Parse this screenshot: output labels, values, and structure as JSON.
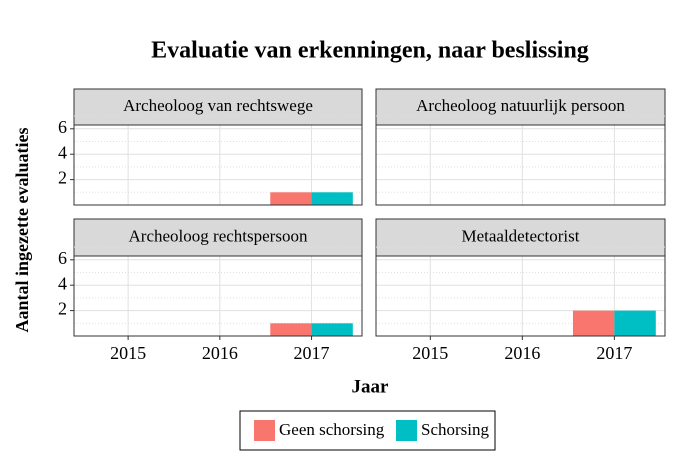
{
  "chart_data": {
    "type": "bar",
    "title": "Evaluatie van erkenningen, naar beslissing",
    "x_label": "Jaar",
    "y_label": "Aantal ingezette evaluaties",
    "x": [
      2015,
      2016,
      2017
    ],
    "xlim": [
      2014.41,
      2017.55
    ],
    "xticks": [
      2015,
      2016,
      2017
    ],
    "ylim": [
      0,
      6.3
    ],
    "yticks": [
      2,
      4,
      6
    ],
    "grid": true,
    "legend_position": "bottom",
    "legend": [
      {
        "name": "Geen schorsing",
        "color": "#f8766d"
      },
      {
        "name": "Schorsing",
        "color": "#00bfc4"
      }
    ],
    "panels": [
      {
        "title": "Archeoloog van rechtswege",
        "series": [
          {
            "values": [
              0,
              0,
              1
            ]
          },
          {
            "values": [
              0,
              0,
              1
            ]
          }
        ]
      },
      {
        "title": "Archeoloog natuurlijk persoon",
        "series": [
          {
            "values": [
              0,
              0,
              0
            ]
          },
          {
            "values": [
              0,
              0,
              0
            ]
          }
        ]
      },
      {
        "title": "Archeoloog rechtspersoon",
        "series": [
          {
            "values": [
              0,
              0,
              1
            ]
          },
          {
            "values": [
              0,
              0,
              1
            ]
          }
        ]
      },
      {
        "title": "Metaaldetectorist",
        "series": [
          {
            "values": [
              0,
              0,
              2
            ]
          },
          {
            "values": [
              0,
              0,
              2
            ]
          }
        ]
      }
    ]
  }
}
